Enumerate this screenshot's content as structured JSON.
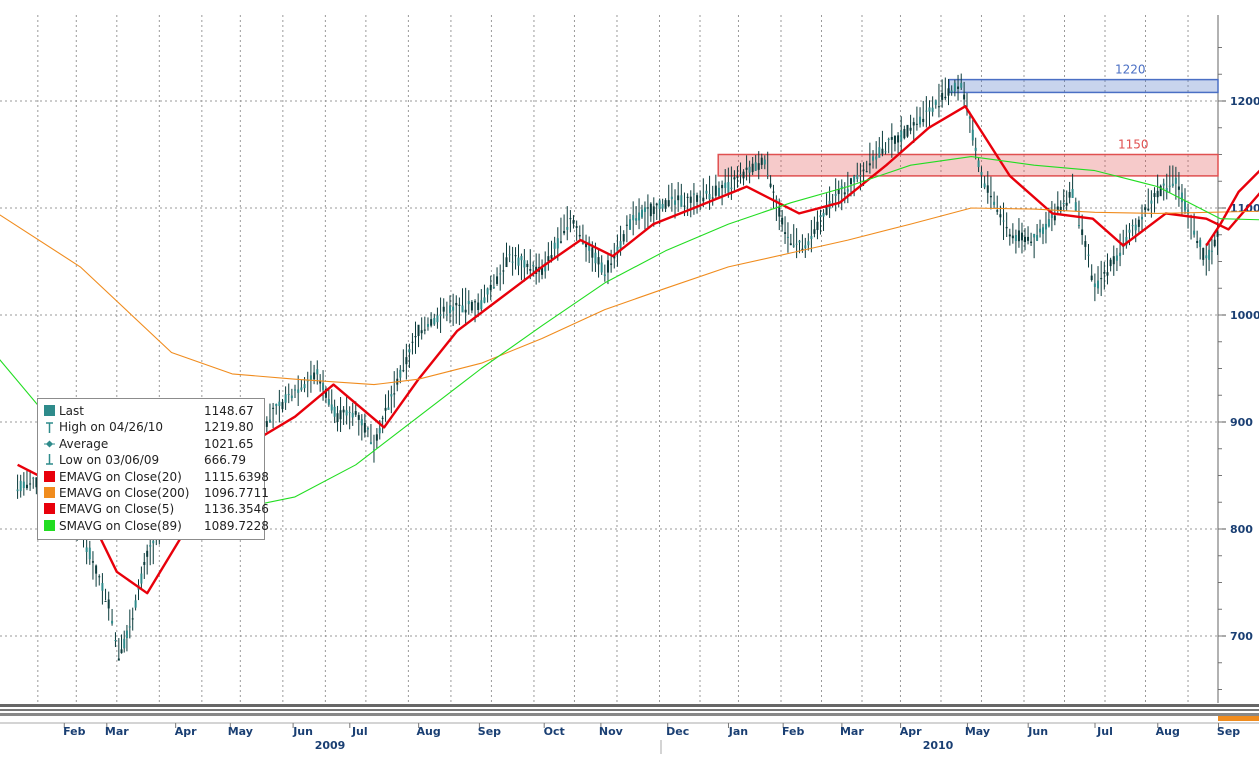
{
  "chart_data": {
    "type": "line",
    "title": "",
    "xlabel": "",
    "ylabel": "",
    "x_tick_labels": [
      "Feb",
      "Mar",
      "Apr",
      "May",
      "Jun",
      "Jul",
      "Aug",
      "Sep",
      "Oct",
      "Nov",
      "Dec",
      "Jan",
      "Feb",
      "Mar",
      "Apr",
      "May",
      "Jun",
      "Jul",
      "Aug",
      "Sep"
    ],
    "x_year_labels": [
      "2009",
      "2010"
    ],
    "y_ticks": [
      700,
      800,
      900,
      1000,
      1100,
      1200
    ],
    "ylim": [
      650,
      1260
    ],
    "y_axis_side": "right",
    "grid": true,
    "legend_position": "middle-left",
    "resistance_bands": [
      {
        "label": "1220",
        "low": 1208,
        "high": 1220,
        "color": "#4a6fc4"
      },
      {
        "label": "1150",
        "low": 1130,
        "high": 1150,
        "color": "#e05050"
      }
    ],
    "legend": [
      {
        "label": "Last",
        "value": "1148.67",
        "color": "#2e8b8b",
        "marker": "square"
      },
      {
        "label": "High on 04/26/10",
        "value": "1219.80",
        "color": "#2e8b8b",
        "marker": "high"
      },
      {
        "label": "Average",
        "value": "1021.65",
        "color": "#2e8b8b",
        "marker": "avg"
      },
      {
        "label": "Low on 03/06/09",
        "value": "666.79",
        "color": "#2e8b8b",
        "marker": "low"
      },
      {
        "label": "EMAVG on Close(20)",
        "value": "1115.6398",
        "color": "#e8000b",
        "marker": "square"
      },
      {
        "label": "EMAVG on Close(200)",
        "value": "1096.7711",
        "color": "#f08c1e",
        "marker": "square"
      },
      {
        "label": "EMAVG on Close(5)",
        "value": "1136.3546",
        "color": "#e8000b",
        "marker": "square"
      },
      {
        "label": "SMAVG on Close(89)",
        "value": "1089.7228",
        "color": "#22dd22",
        "marker": "square"
      }
    ],
    "price_path": [
      {
        "x": "2009-01-15",
        "y": 840
      },
      {
        "x": "2009-02-01",
        "y": 845
      },
      {
        "x": "2009-02-15",
        "y": 800
      },
      {
        "x": "2009-03-01",
        "y": 730
      },
      {
        "x": "2009-03-06",
        "y": 683
      },
      {
        "x": "2009-03-10",
        "y": 700
      },
      {
        "x": "2009-03-20",
        "y": 775
      },
      {
        "x": "2009-04-01",
        "y": 815
      },
      {
        "x": "2009-04-15",
        "y": 860
      },
      {
        "x": "2009-05-01",
        "y": 880
      },
      {
        "x": "2009-05-15",
        "y": 895
      },
      {
        "x": "2009-06-01",
        "y": 930
      },
      {
        "x": "2009-06-12",
        "y": 945
      },
      {
        "x": "2009-06-22",
        "y": 905
      },
      {
        "x": "2009-07-01",
        "y": 910
      },
      {
        "x": "2009-07-10",
        "y": 880
      },
      {
        "x": "2009-07-20",
        "y": 930
      },
      {
        "x": "2009-08-01",
        "y": 985
      },
      {
        "x": "2009-08-15",
        "y": 1005
      },
      {
        "x": "2009-09-01",
        "y": 1010
      },
      {
        "x": "2009-09-15",
        "y": 1055
      },
      {
        "x": "2009-10-01",
        "y": 1040
      },
      {
        "x": "2009-10-15",
        "y": 1090
      },
      {
        "x": "2009-11-01",
        "y": 1040
      },
      {
        "x": "2009-11-15",
        "y": 1090
      },
      {
        "x": "2009-12-01",
        "y": 1105
      },
      {
        "x": "2009-12-15",
        "y": 1108
      },
      {
        "x": "2010-01-01",
        "y": 1120
      },
      {
        "x": "2010-01-19",
        "y": 1145
      },
      {
        "x": "2010-01-29",
        "y": 1075
      },
      {
        "x": "2010-02-08",
        "y": 1060
      },
      {
        "x": "2010-02-20",
        "y": 1105
      },
      {
        "x": "2010-03-01",
        "y": 1120
      },
      {
        "x": "2010-03-15",
        "y": 1150
      },
      {
        "x": "2010-04-01",
        "y": 1175
      },
      {
        "x": "2010-04-15",
        "y": 1200
      },
      {
        "x": "2010-04-26",
        "y": 1217
      },
      {
        "x": "2010-05-06",
        "y": 1130
      },
      {
        "x": "2010-05-20",
        "y": 1075
      },
      {
        "x": "2010-06-01",
        "y": 1070
      },
      {
        "x": "2010-06-20",
        "y": 1115
      },
      {
        "x": "2010-07-01",
        "y": 1025
      },
      {
        "x": "2010-07-15",
        "y": 1065
      },
      {
        "x": "2010-08-01",
        "y": 1115
      },
      {
        "x": "2010-08-10",
        "y": 1125
      },
      {
        "x": "2010-08-25",
        "y": 1050
      },
      {
        "x": "2010-09-01",
        "y": 1080
      },
      {
        "x": "2010-09-15",
        "y": 1130
      },
      {
        "x": "2010-09-21",
        "y": 1148
      }
    ],
    "series": [
      {
        "name": "EMAVG on Close(20)",
        "color": "#e8000b",
        "points": [
          {
            "x": "2009-01-15",
            "y": 860
          },
          {
            "x": "2009-02-15",
            "y": 830
          },
          {
            "x": "2009-03-05",
            "y": 760
          },
          {
            "x": "2009-03-20",
            "y": 740
          },
          {
            "x": "2009-04-05",
            "y": 790
          },
          {
            "x": "2009-04-20",
            "y": 845
          },
          {
            "x": "2009-05-10",
            "y": 880
          },
          {
            "x": "2009-06-01",
            "y": 905
          },
          {
            "x": "2009-06-20",
            "y": 935
          },
          {
            "x": "2009-07-15",
            "y": 895
          },
          {
            "x": "2009-08-01",
            "y": 940
          },
          {
            "x": "2009-08-20",
            "y": 985
          },
          {
            "x": "2009-09-10",
            "y": 1015
          },
          {
            "x": "2009-10-01",
            "y": 1045
          },
          {
            "x": "2009-10-20",
            "y": 1070
          },
          {
            "x": "2009-11-05",
            "y": 1055
          },
          {
            "x": "2009-11-25",
            "y": 1085
          },
          {
            "x": "2009-12-15",
            "y": 1100
          },
          {
            "x": "2010-01-10",
            "y": 1120
          },
          {
            "x": "2010-02-05",
            "y": 1095
          },
          {
            "x": "2010-02-25",
            "y": 1105
          },
          {
            "x": "2010-03-20",
            "y": 1140
          },
          {
            "x": "2010-04-10",
            "y": 1175
          },
          {
            "x": "2010-04-28",
            "y": 1195
          },
          {
            "x": "2010-05-20",
            "y": 1130
          },
          {
            "x": "2010-06-10",
            "y": 1095
          },
          {
            "x": "2010-06-30",
            "y": 1090
          },
          {
            "x": "2010-07-15",
            "y": 1065
          },
          {
            "x": "2010-08-05",
            "y": 1095
          },
          {
            "x": "2010-08-25",
            "y": 1090
          },
          {
            "x": "2010-09-05",
            "y": 1080
          },
          {
            "x": "2010-09-21",
            "y": 1115
          }
        ]
      },
      {
        "name": "EMAVG on Close(200)",
        "color": "#f08c1e",
        "points": [
          {
            "x": "2009-01-01",
            "y": 1100
          },
          {
            "x": "2009-02-15",
            "y": 1045
          },
          {
            "x": "2009-04-01",
            "y": 965
          },
          {
            "x": "2009-05-01",
            "y": 945
          },
          {
            "x": "2009-06-01",
            "y": 940
          },
          {
            "x": "2009-07-10",
            "y": 935
          },
          {
            "x": "2009-08-01",
            "y": 940
          },
          {
            "x": "2009-09-01",
            "y": 955
          },
          {
            "x": "2009-10-01",
            "y": 978
          },
          {
            "x": "2009-11-01",
            "y": 1005
          },
          {
            "x": "2009-12-01",
            "y": 1025
          },
          {
            "x": "2010-01-01",
            "y": 1045
          },
          {
            "x": "2010-02-01",
            "y": 1058
          },
          {
            "x": "2010-03-01",
            "y": 1070
          },
          {
            "x": "2010-04-01",
            "y": 1085
          },
          {
            "x": "2010-05-01",
            "y": 1100
          },
          {
            "x": "2010-06-01",
            "y": 1099
          },
          {
            "x": "2010-07-01",
            "y": 1096
          },
          {
            "x": "2010-08-01",
            "y": 1095
          },
          {
            "x": "2010-09-21",
            "y": 1097
          }
        ]
      },
      {
        "name": "EMAVG on Close(5)",
        "color": "#e8000b",
        "points": [
          {
            "x": "2010-08-25",
            "y": 1065
          },
          {
            "x": "2010-09-01",
            "y": 1085
          },
          {
            "x": "2010-09-10",
            "y": 1115
          },
          {
            "x": "2010-09-21",
            "y": 1136
          }
        ]
      },
      {
        "name": "SMAVG on Close(89)",
        "color": "#22dd22",
        "points": [
          {
            "x": "2009-01-01",
            "y": 970
          },
          {
            "x": "2009-02-01",
            "y": 900
          },
          {
            "x": "2009-03-01",
            "y": 850
          },
          {
            "x": "2009-04-01",
            "y": 825
          },
          {
            "x": "2009-05-01",
            "y": 818
          },
          {
            "x": "2009-06-01",
            "y": 830
          },
          {
            "x": "2009-07-01",
            "y": 860
          },
          {
            "x": "2009-08-01",
            "y": 905
          },
          {
            "x": "2009-09-01",
            "y": 950
          },
          {
            "x": "2009-10-01",
            "y": 990
          },
          {
            "x": "2009-11-01",
            "y": 1030
          },
          {
            "x": "2009-12-01",
            "y": 1060
          },
          {
            "x": "2010-01-01",
            "y": 1085
          },
          {
            "x": "2010-02-01",
            "y": 1105
          },
          {
            "x": "2010-03-01",
            "y": 1120
          },
          {
            "x": "2010-04-01",
            "y": 1140
          },
          {
            "x": "2010-05-01",
            "y": 1148
          },
          {
            "x": "2010-06-01",
            "y": 1140
          },
          {
            "x": "2010-07-01",
            "y": 1135
          },
          {
            "x": "2010-08-01",
            "y": 1120
          },
          {
            "x": "2010-09-01",
            "y": 1090
          },
          {
            "x": "2010-09-21",
            "y": 1089
          }
        ]
      }
    ]
  }
}
